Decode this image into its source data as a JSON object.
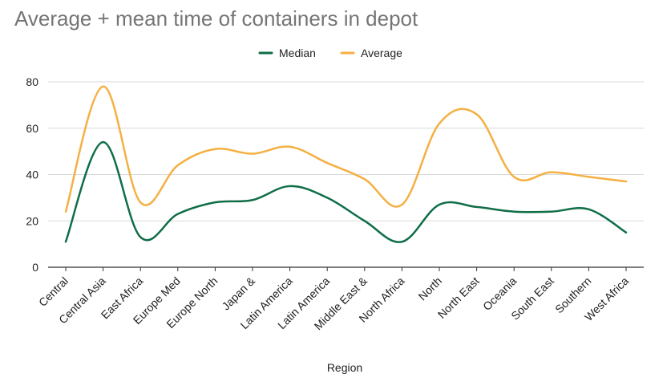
{
  "chart_data": {
    "type": "line",
    "title": "Average + mean time of containers in depot",
    "xlabel": "Region",
    "ylabel": "",
    "ylim": [
      0,
      80
    ],
    "yticks": [
      0,
      20,
      40,
      60,
      80
    ],
    "grid": true,
    "legend_position": "top",
    "smooth": true,
    "categories": [
      "Central",
      "Central Asia",
      "East Africa",
      "Europe Med",
      "Europe North",
      "Japan &",
      "Latin America",
      "Latin America",
      "Middle East &",
      "North Africa",
      "North",
      "North East",
      "Oceania",
      "South East",
      "Southern",
      "West Africa"
    ],
    "series": [
      {
        "name": "Median",
        "color": "#0f6e47",
        "values": [
          11,
          54,
          13,
          23,
          28,
          29,
          35,
          30,
          20,
          11,
          27,
          26,
          24,
          24,
          25,
          15
        ]
      },
      {
        "name": "Average",
        "color": "#f4b043",
        "values": [
          24,
          78,
          28,
          44,
          51,
          49,
          52,
          45,
          38,
          27,
          62,
          66,
          39,
          41,
          39,
          37
        ]
      }
    ]
  }
}
